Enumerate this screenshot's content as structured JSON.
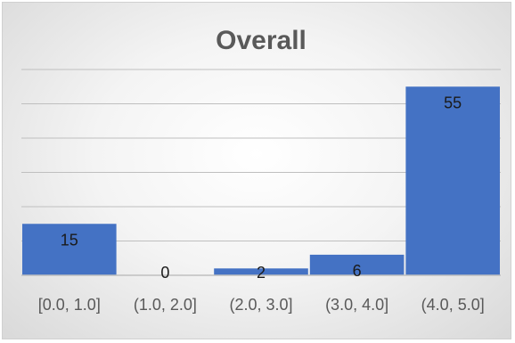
{
  "chart_data": {
    "type": "bar",
    "title": "Overall",
    "categories": [
      "[0.0, 1.0]",
      "(1.0, 2.0]",
      "(2.0, 3.0]",
      "(3.0, 4.0]",
      "(4.0, 5.0]"
    ],
    "values": [
      15,
      0,
      2,
      6,
      55
    ],
    "ylim": [
      0,
      60
    ],
    "grid": true,
    "bar_color": "#4472c4",
    "data_labels": [
      "15",
      "0",
      "2",
      "6",
      "55"
    ]
  }
}
